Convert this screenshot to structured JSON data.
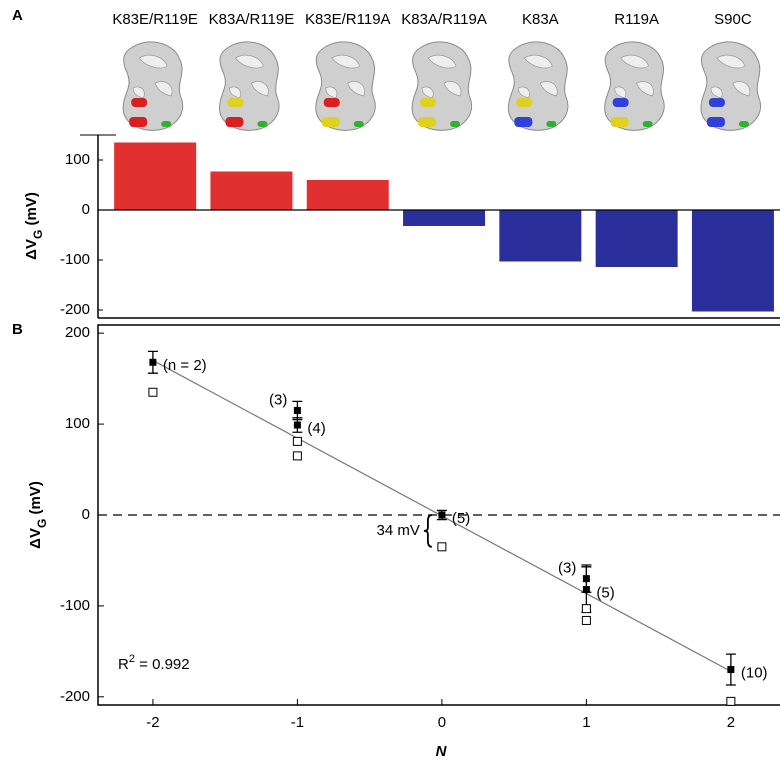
{
  "chart_data": [
    {
      "type": "bar",
      "panel_label": "A",
      "categories": [
        "K83E/R119E",
        "K83A/R119E",
        "K83E/R119A",
        "K83A/R119A",
        "K83A",
        "R119A",
        "S90C"
      ],
      "values": [
        135,
        77,
        60,
        -32,
        -103,
        -114,
        -203
      ],
      "colors": [
        "#e03030",
        "#e03030",
        "#e03030",
        "#2b2f9b",
        "#2b2f9b",
        "#2b2f9b",
        "#2b2f9b"
      ],
      "ylim": [
        -216,
        150
      ],
      "yticks": [
        -200,
        -100,
        0,
        100
      ],
      "y_label": {
        "text": "ΔV",
        "subscript": "G",
        "suffix": " (mV)"
      }
    },
    {
      "type": "scatter",
      "panel_label": "B",
      "x_label": "N",
      "y_label": {
        "text": "ΔV",
        "subscript": "G",
        "suffix": " (mV)"
      },
      "xlim": [
        -2.38,
        2.34
      ],
      "xticks": [
        -2,
        -1,
        0,
        1,
        2
      ],
      "ylim": [
        -209,
        209
      ],
      "yticks": [
        -200,
        -100,
        0,
        100,
        200
      ],
      "series": [
        {
          "marker": "filled",
          "color": "#000000",
          "x": [
            -2,
            -1,
            -1,
            0,
            1,
            1,
            2
          ],
          "values": [
            168,
            115,
            99,
            0,
            -70,
            -82,
            -170
          ],
          "errors": [
            12,
            10,
            8,
            5,
            15,
            25,
            17
          ],
          "labels": [
            "(n = 2)",
            "(3)",
            "(4)",
            "(5)",
            "(3)",
            "(5)",
            "(10)"
          ]
        },
        {
          "marker": "open",
          "color": "#000000",
          "x": [
            -2,
            -1,
            -1,
            0,
            1,
            1,
            2
          ],
          "values": [
            135,
            81,
            65,
            -35,
            -103,
            -116,
            -205
          ]
        }
      ],
      "fit": {
        "x": [
          -2,
          2
        ],
        "values": [
          170,
          -172
        ]
      },
      "annotation": "34 mV",
      "r_squared": {
        "text": "R",
        "sup": "2",
        "suffix": " = 0.992"
      }
    }
  ]
}
